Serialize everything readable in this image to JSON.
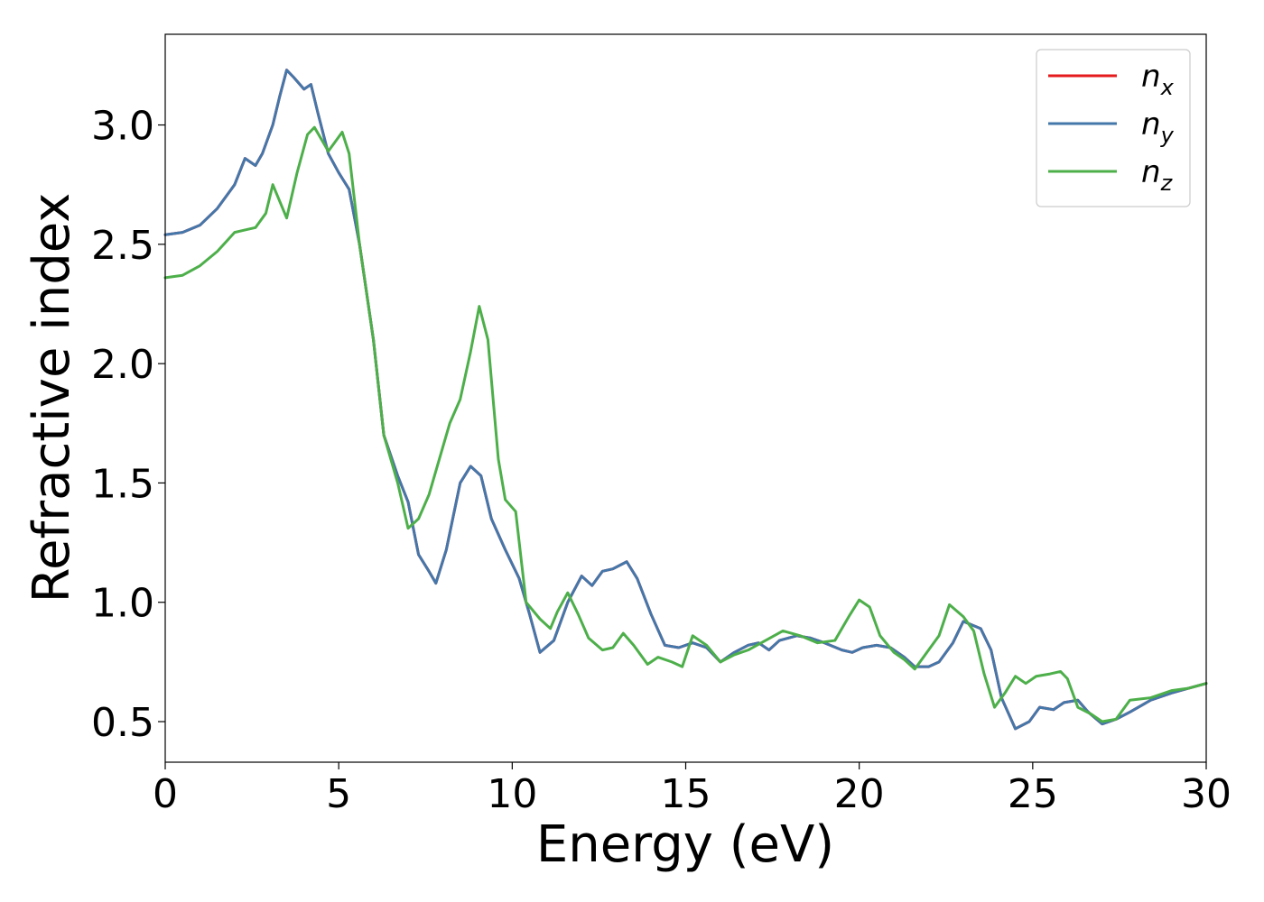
{
  "chart_data": {
    "type": "line",
    "xlabel": "Energy (eV)",
    "ylabel": "Refractive index",
    "xlim": [
      0,
      30
    ],
    "ylim": [
      0.33,
      3.38
    ],
    "xticks": [
      0,
      5,
      10,
      15,
      20,
      25,
      30
    ],
    "yticks": [
      0.5,
      1.0,
      1.5,
      2.0,
      2.5,
      3.0
    ],
    "xtick_labels": [
      "0",
      "5",
      "10",
      "15",
      "20",
      "25",
      "30"
    ],
    "ytick_labels": [
      "0.5",
      "1.0",
      "1.5",
      "2.0",
      "2.5",
      "3.0"
    ],
    "grid": false,
    "legend_position": "top-right",
    "series": [
      {
        "name": "n_x",
        "label_base": "n",
        "label_sub": "x",
        "color": "#e41a1c",
        "points": [
          [
            0,
            2.54
          ],
          [
            0.5,
            2.55
          ],
          [
            1,
            2.58
          ],
          [
            1.5,
            2.65
          ],
          [
            2,
            2.75
          ],
          [
            2.3,
            2.86
          ],
          [
            2.6,
            2.83
          ],
          [
            2.8,
            2.88
          ],
          [
            3.1,
            3.0
          ],
          [
            3.3,
            3.12
          ],
          [
            3.5,
            3.23
          ],
          [
            3.7,
            3.2
          ],
          [
            4.0,
            3.15
          ],
          [
            4.2,
            3.17
          ],
          [
            4.4,
            3.05
          ],
          [
            4.7,
            2.88
          ],
          [
            5.0,
            2.8
          ],
          [
            5.3,
            2.73
          ],
          [
            5.6,
            2.5
          ],
          [
            6.0,
            2.1
          ],
          [
            6.3,
            1.7
          ],
          [
            6.7,
            1.53
          ],
          [
            7.0,
            1.42
          ],
          [
            7.3,
            1.2
          ],
          [
            7.6,
            1.13
          ],
          [
            7.8,
            1.08
          ],
          [
            8.1,
            1.22
          ],
          [
            8.5,
            1.5
          ],
          [
            8.8,
            1.57
          ],
          [
            9.1,
            1.53
          ],
          [
            9.4,
            1.35
          ],
          [
            9.8,
            1.22
          ],
          [
            10.2,
            1.1
          ],
          [
            10.5,
            0.95
          ],
          [
            10.8,
            0.79
          ],
          [
            11.2,
            0.84
          ],
          [
            11.6,
            1.0
          ],
          [
            12.0,
            1.11
          ],
          [
            12.3,
            1.07
          ],
          [
            12.6,
            1.13
          ],
          [
            12.9,
            1.14
          ],
          [
            13.3,
            1.17
          ],
          [
            13.6,
            1.1
          ],
          [
            14.0,
            0.95
          ],
          [
            14.4,
            0.82
          ],
          [
            14.8,
            0.81
          ],
          [
            15.2,
            0.83
          ],
          [
            15.6,
            0.81
          ],
          [
            16.0,
            0.75
          ],
          [
            16.4,
            0.79
          ],
          [
            16.8,
            0.82
          ],
          [
            17.1,
            0.83
          ],
          [
            17.4,
            0.8
          ],
          [
            17.7,
            0.84
          ],
          [
            18.2,
            0.86
          ],
          [
            18.6,
            0.85
          ],
          [
            19.0,
            0.83
          ],
          [
            19.5,
            0.8
          ],
          [
            19.8,
            0.79
          ],
          [
            20.1,
            0.81
          ],
          [
            20.5,
            0.82
          ],
          [
            20.9,
            0.81
          ],
          [
            21.3,
            0.77
          ],
          [
            21.6,
            0.73
          ],
          [
            22.0,
            0.73
          ],
          [
            22.3,
            0.75
          ],
          [
            22.7,
            0.83
          ],
          [
            23.0,
            0.92
          ],
          [
            23.5,
            0.89
          ],
          [
            23.8,
            0.8
          ],
          [
            24.1,
            0.6
          ],
          [
            24.5,
            0.47
          ],
          [
            24.9,
            0.5
          ],
          [
            25.2,
            0.56
          ],
          [
            25.6,
            0.55
          ],
          [
            25.9,
            0.58
          ],
          [
            26.3,
            0.59
          ],
          [
            26.6,
            0.54
          ],
          [
            27.0,
            0.49
          ],
          [
            27.4,
            0.51
          ],
          [
            27.8,
            0.54
          ],
          [
            28.4,
            0.59
          ],
          [
            29.0,
            0.62
          ],
          [
            29.5,
            0.64
          ],
          [
            30,
            0.66
          ]
        ]
      },
      {
        "name": "n_y",
        "label_base": "n",
        "label_sub": "y",
        "color": "#4477aa",
        "points": [
          [
            0,
            2.54
          ],
          [
            0.5,
            2.55
          ],
          [
            1,
            2.58
          ],
          [
            1.5,
            2.65
          ],
          [
            2,
            2.75
          ],
          [
            2.3,
            2.86
          ],
          [
            2.6,
            2.83
          ],
          [
            2.8,
            2.88
          ],
          [
            3.1,
            3.0
          ],
          [
            3.3,
            3.12
          ],
          [
            3.5,
            3.23
          ],
          [
            3.7,
            3.2
          ],
          [
            4.0,
            3.15
          ],
          [
            4.2,
            3.17
          ],
          [
            4.4,
            3.05
          ],
          [
            4.7,
            2.88
          ],
          [
            5.0,
            2.8
          ],
          [
            5.3,
            2.73
          ],
          [
            5.6,
            2.5
          ],
          [
            6.0,
            2.1
          ],
          [
            6.3,
            1.7
          ],
          [
            6.7,
            1.53
          ],
          [
            7.0,
            1.42
          ],
          [
            7.3,
            1.2
          ],
          [
            7.6,
            1.13
          ],
          [
            7.8,
            1.08
          ],
          [
            8.1,
            1.22
          ],
          [
            8.5,
            1.5
          ],
          [
            8.8,
            1.57
          ],
          [
            9.1,
            1.53
          ],
          [
            9.4,
            1.35
          ],
          [
            9.8,
            1.22
          ],
          [
            10.2,
            1.1
          ],
          [
            10.5,
            0.95
          ],
          [
            10.8,
            0.79
          ],
          [
            11.2,
            0.84
          ],
          [
            11.6,
            1.0
          ],
          [
            12.0,
            1.11
          ],
          [
            12.3,
            1.07
          ],
          [
            12.6,
            1.13
          ],
          [
            12.9,
            1.14
          ],
          [
            13.3,
            1.17
          ],
          [
            13.6,
            1.1
          ],
          [
            14.0,
            0.95
          ],
          [
            14.4,
            0.82
          ],
          [
            14.8,
            0.81
          ],
          [
            15.2,
            0.83
          ],
          [
            15.6,
            0.81
          ],
          [
            16.0,
            0.75
          ],
          [
            16.4,
            0.79
          ],
          [
            16.8,
            0.82
          ],
          [
            17.1,
            0.83
          ],
          [
            17.4,
            0.8
          ],
          [
            17.7,
            0.84
          ],
          [
            18.2,
            0.86
          ],
          [
            18.6,
            0.85
          ],
          [
            19.0,
            0.83
          ],
          [
            19.5,
            0.8
          ],
          [
            19.8,
            0.79
          ],
          [
            20.1,
            0.81
          ],
          [
            20.5,
            0.82
          ],
          [
            20.9,
            0.81
          ],
          [
            21.3,
            0.77
          ],
          [
            21.6,
            0.73
          ],
          [
            22.0,
            0.73
          ],
          [
            22.3,
            0.75
          ],
          [
            22.7,
            0.83
          ],
          [
            23.0,
            0.92
          ],
          [
            23.5,
            0.89
          ],
          [
            23.8,
            0.8
          ],
          [
            24.1,
            0.6
          ],
          [
            24.5,
            0.47
          ],
          [
            24.9,
            0.5
          ],
          [
            25.2,
            0.56
          ],
          [
            25.6,
            0.55
          ],
          [
            25.9,
            0.58
          ],
          [
            26.3,
            0.59
          ],
          [
            26.6,
            0.54
          ],
          [
            27.0,
            0.49
          ],
          [
            27.4,
            0.51
          ],
          [
            27.8,
            0.54
          ],
          [
            28.4,
            0.59
          ],
          [
            29.0,
            0.62
          ],
          [
            29.5,
            0.64
          ],
          [
            30,
            0.66
          ]
        ]
      },
      {
        "name": "n_z",
        "label_base": "n",
        "label_sub": "z",
        "color": "#4daf4a",
        "points": [
          [
            0,
            2.36
          ],
          [
            0.5,
            2.37
          ],
          [
            1,
            2.41
          ],
          [
            1.5,
            2.47
          ],
          [
            2,
            2.55
          ],
          [
            2.3,
            2.56
          ],
          [
            2.6,
            2.57
          ],
          [
            2.9,
            2.63
          ],
          [
            3.1,
            2.75
          ],
          [
            3.3,
            2.68
          ],
          [
            3.5,
            2.61
          ],
          [
            3.8,
            2.8
          ],
          [
            4.1,
            2.96
          ],
          [
            4.3,
            2.99
          ],
          [
            4.5,
            2.94
          ],
          [
            4.7,
            2.89
          ],
          [
            4.9,
            2.93
          ],
          [
            5.1,
            2.97
          ],
          [
            5.3,
            2.88
          ],
          [
            5.6,
            2.5
          ],
          [
            6.0,
            2.1
          ],
          [
            6.3,
            1.7
          ],
          [
            6.7,
            1.5
          ],
          [
            7.0,
            1.31
          ],
          [
            7.3,
            1.35
          ],
          [
            7.6,
            1.45
          ],
          [
            7.9,
            1.6
          ],
          [
            8.2,
            1.75
          ],
          [
            8.5,
            1.85
          ],
          [
            8.8,
            2.05
          ],
          [
            9.05,
            2.24
          ],
          [
            9.3,
            2.1
          ],
          [
            9.6,
            1.6
          ],
          [
            9.8,
            1.43
          ],
          [
            10.1,
            1.38
          ],
          [
            10.4,
            1.0
          ],
          [
            10.8,
            0.93
          ],
          [
            11.1,
            0.89
          ],
          [
            11.3,
            0.96
          ],
          [
            11.6,
            1.04
          ],
          [
            11.9,
            0.95
          ],
          [
            12.2,
            0.85
          ],
          [
            12.6,
            0.8
          ],
          [
            12.9,
            0.81
          ],
          [
            13.2,
            0.87
          ],
          [
            13.5,
            0.82
          ],
          [
            13.9,
            0.74
          ],
          [
            14.2,
            0.77
          ],
          [
            14.6,
            0.75
          ],
          [
            14.9,
            0.73
          ],
          [
            15.2,
            0.86
          ],
          [
            15.6,
            0.82
          ],
          [
            16.0,
            0.75
          ],
          [
            16.4,
            0.78
          ],
          [
            16.8,
            0.8
          ],
          [
            17.3,
            0.84
          ],
          [
            17.8,
            0.88
          ],
          [
            18.3,
            0.86
          ],
          [
            18.8,
            0.83
          ],
          [
            19.3,
            0.84
          ],
          [
            19.7,
            0.94
          ],
          [
            20.0,
            1.01
          ],
          [
            20.3,
            0.98
          ],
          [
            20.6,
            0.86
          ],
          [
            21.0,
            0.79
          ],
          [
            21.3,
            0.76
          ],
          [
            21.6,
            0.72
          ],
          [
            22.0,
            0.8
          ],
          [
            22.3,
            0.86
          ],
          [
            22.6,
            0.99
          ],
          [
            23.0,
            0.94
          ],
          [
            23.3,
            0.88
          ],
          [
            23.6,
            0.7
          ],
          [
            23.9,
            0.56
          ],
          [
            24.2,
            0.62
          ],
          [
            24.5,
            0.69
          ],
          [
            24.8,
            0.66
          ],
          [
            25.1,
            0.69
          ],
          [
            25.5,
            0.7
          ],
          [
            25.8,
            0.71
          ],
          [
            26.0,
            0.68
          ],
          [
            26.3,
            0.56
          ],
          [
            26.7,
            0.53
          ],
          [
            27.0,
            0.5
          ],
          [
            27.4,
            0.51
          ],
          [
            27.8,
            0.59
          ],
          [
            28.4,
            0.6
          ],
          [
            29.0,
            0.63
          ],
          [
            29.5,
            0.64
          ],
          [
            30,
            0.66
          ]
        ]
      }
    ]
  }
}
